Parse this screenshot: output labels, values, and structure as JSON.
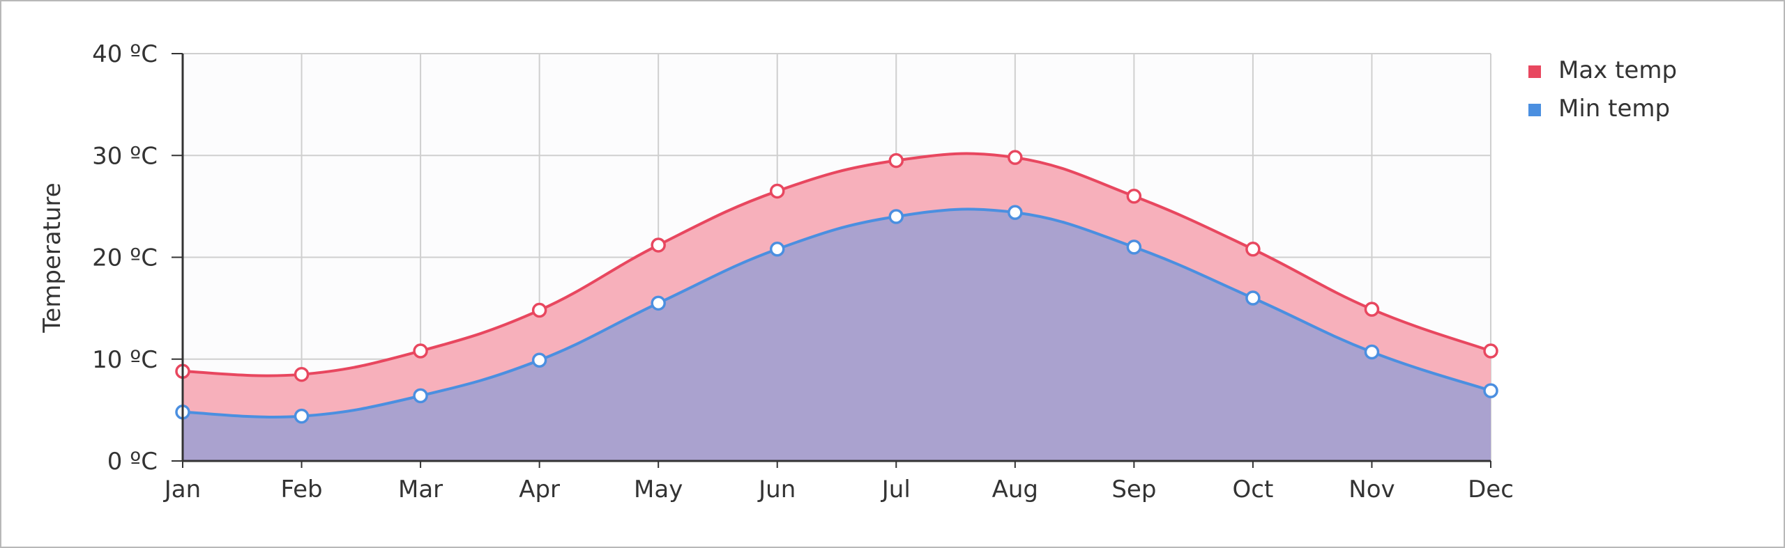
{
  "chart_data": {
    "type": "area",
    "title": "",
    "xlabel": "",
    "ylabel": "Temperature",
    "categories": [
      "Jan",
      "Feb",
      "Mar",
      "Apr",
      "May",
      "Jun",
      "Jul",
      "Aug",
      "Sep",
      "Oct",
      "Nov",
      "Dec"
    ],
    "y_tick_labels": [
      "0 ºC",
      "10 ºC",
      "20 ºC",
      "30 ºC",
      "40 ºC"
    ],
    "ylim": [
      0,
      40
    ],
    "y_ticks": [
      0,
      10,
      20,
      30,
      40
    ],
    "grid": true,
    "legend_position": "top-right",
    "series": [
      {
        "name": "Max temp",
        "color": "#e8475f",
        "fill": "#f7b0bb",
        "values": [
          8.8,
          8.5,
          10.8,
          14.8,
          21.2,
          26.5,
          29.5,
          29.8,
          26.0,
          20.8,
          14.9,
          10.8
        ]
      },
      {
        "name": "Min temp",
        "color": "#4b8fe0",
        "fill": "#aaa2cf",
        "values": [
          4.8,
          4.4,
          6.4,
          9.9,
          15.5,
          20.8,
          24.0,
          24.4,
          21.0,
          16.0,
          10.7,
          6.9
        ]
      }
    ]
  }
}
